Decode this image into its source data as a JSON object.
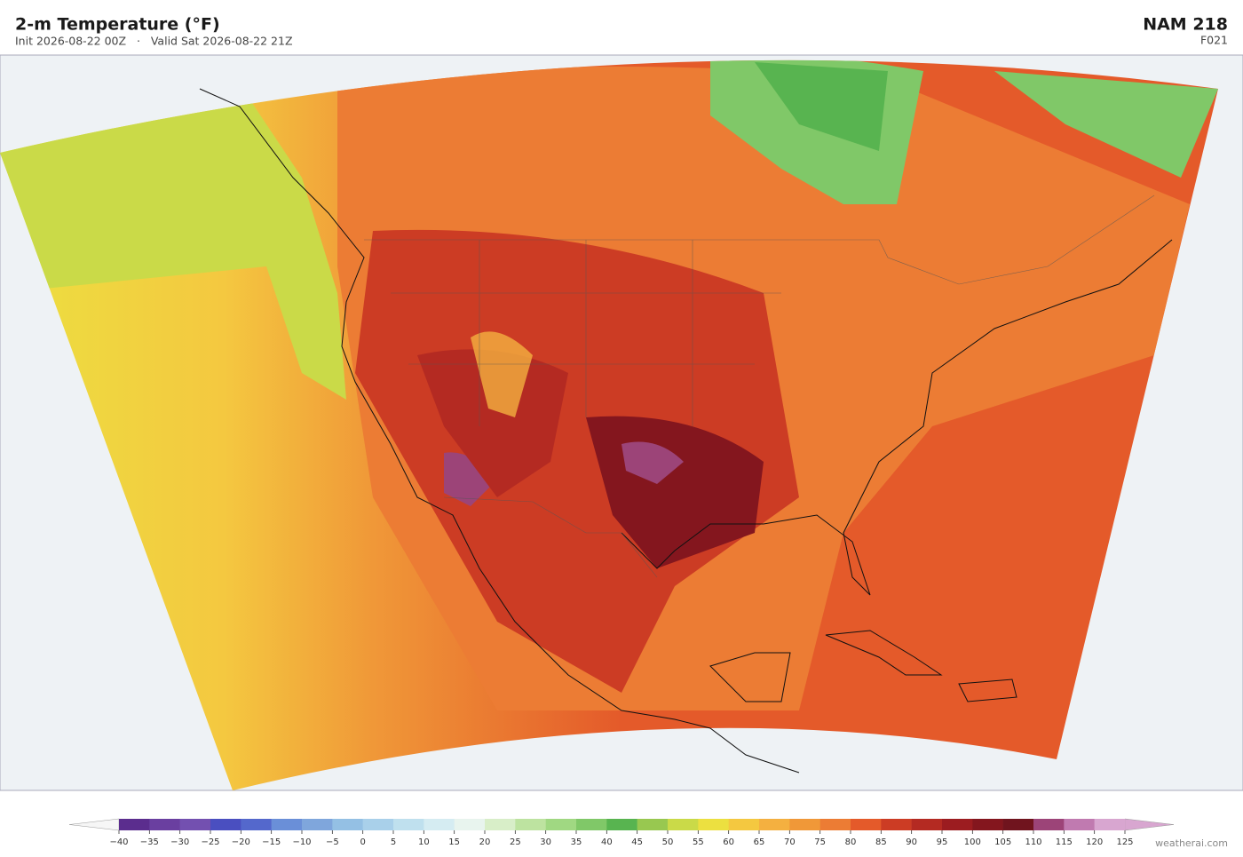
{
  "header": {
    "title": "2-m Temperature  (°F)",
    "subtitle": "Init 2026-08-22 00Z   ·   Valid Sat 2026-08-22 21Z",
    "model": "NAM  218",
    "forecast_hour": "F021"
  },
  "colorbar": {
    "ticks": [
      {
        "value": -40,
        "label": "−40"
      },
      {
        "value": -35,
        "label": "−35"
      },
      {
        "value": -30,
        "label": "−30"
      },
      {
        "value": -25,
        "label": "−25"
      },
      {
        "value": -20,
        "label": "−20"
      },
      {
        "value": -15,
        "label": "−15"
      },
      {
        "value": -10,
        "label": "−10"
      },
      {
        "value": -5,
        "label": "−5"
      },
      0,
      5,
      10,
      15,
      20,
      25,
      30,
      35,
      40,
      45,
      50,
      55,
      60,
      65,
      70,
      75,
      80,
      85,
      90,
      95,
      100,
      105,
      110,
      115,
      120,
      125
    ],
    "colors": [
      "#5b2d8e",
      "#6a3fa0",
      "#7350b0",
      "#4a4fc0",
      "#5468cc",
      "#6a8fd8",
      "#7fa6dc",
      "#94c0e4",
      "#a9d0ea",
      "#bfe0ee",
      "#d5ecf2",
      "#e8f4ee",
      "#d8eec8",
      "#bde3a0",
      "#a0d882",
      "#80c868",
      "#58b450",
      "#98c850",
      "#cada48",
      "#ece040",
      "#f4c840",
      "#f4b040",
      "#f09838",
      "#ec7c34",
      "#e45a2a",
      "#cc3c24",
      "#b42a22",
      "#9c1c20",
      "#84161e",
      "#70141e",
      "#9c4478",
      "#c07ab0",
      "#d8a6d0"
    ],
    "under_color": "#f6f6f6",
    "over_color": "#d8a6d0"
  },
  "credit": "weatherai.com"
}
